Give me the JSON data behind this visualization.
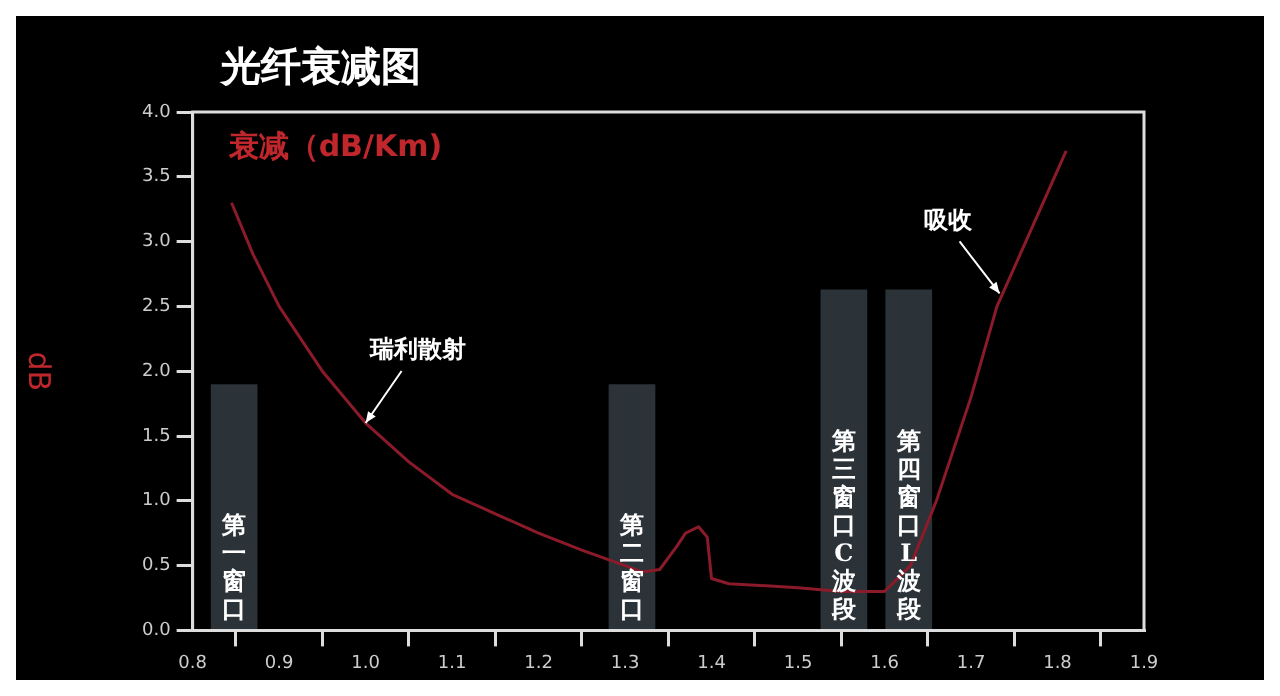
{
  "chart_data": {
    "type": "line",
    "title": "光纤衰减图",
    "ylabel": "dB",
    "legend": "top left",
    "xlim": [
      0.8,
      1.9
    ],
    "xticks": [
      {
        "value": 0.8,
        "label": "0.8"
      },
      {
        "value": 0.9,
        "label": "0.9"
      },
      {
        "value": 1.0,
        "label": "1.0"
      },
      {
        "value": 1.1,
        "label": "1.1"
      },
      {
        "value": 1.2,
        "label": "1.2"
      },
      {
        "value": 1.3,
        "label": "1.3"
      },
      {
        "value": 1.4,
        "label": "1.4"
      },
      {
        "value": 1.5,
        "label": "1.5"
      },
      {
        "value": 1.6,
        "label": "1.6"
      },
      {
        "value": 1.7,
        "label": "1.7"
      },
      {
        "value": 1.8,
        "label": "1.8"
      },
      {
        "value": 1.9,
        "label": "1.9"
      }
    ],
    "ylim": [
      0,
      4
    ],
    "yticks": [
      {
        "value": 0,
        "label": "0.0"
      },
      {
        "value": 0.5,
        "label": "0.5"
      },
      {
        "value": 1,
        "label": "1.0"
      },
      {
        "value": 1.5,
        "label": "1.5"
      },
      {
        "value": 2,
        "label": "2.0"
      },
      {
        "value": 2.5,
        "label": "2.5"
      },
      {
        "value": 3,
        "label": "3.0"
      },
      {
        "value": 3.5,
        "label": "3.5"
      },
      {
        "value": 4,
        "label": "4.0"
      }
    ],
    "series": [
      {
        "type": "bar",
        "color": "#2b3238",
        "x": [
          0.848,
          1.308,
          1.553,
          1.628
        ],
        "values": [
          1.9,
          1.9,
          2.63,
          2.63
        ],
        "value_labels": [
          "第一窗口",
          "第二窗口",
          "第三窗口 C波段",
          "第四窗口 L波段"
        ]
      },
      {
        "name": "衰减（dB/Km)",
        "color": "#8b1a2a",
        "x": [
          0.845,
          0.87,
          0.9,
          0.95,
          1.0,
          1.05,
          1.1,
          1.15,
          1.2,
          1.25,
          1.3,
          1.32,
          1.34,
          1.36,
          1.37,
          1.385,
          1.395,
          1.4,
          1.42,
          1.5,
          1.55,
          1.6,
          1.63,
          1.66,
          1.7,
          1.73,
          1.77,
          1.81
        ],
        "values": [
          3.3,
          2.9,
          2.5,
          2.0,
          1.6,
          1.3,
          1.05,
          0.9,
          0.75,
          0.62,
          0.5,
          0.45,
          0.47,
          0.65,
          0.75,
          0.8,
          0.72,
          0.4,
          0.36,
          0.33,
          0.3,
          0.3,
          0.5,
          1.0,
          1.8,
          2.5,
          3.1,
          3.7
        ]
      }
    ],
    "annotations": [
      {
        "text": "瑞利散射",
        "x": 1.0,
        "y": 1.6
      },
      {
        "text": "吸收",
        "x": 1.733,
        "y": 2.6
      }
    ]
  }
}
